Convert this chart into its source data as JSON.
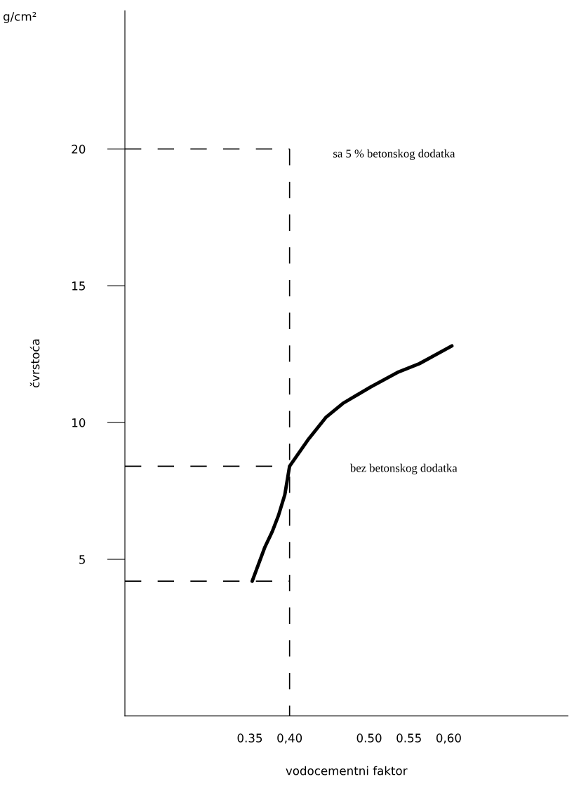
{
  "chart_data": {
    "type": "line",
    "xlabel": "vodocementni faktor",
    "ylabel": "čvrstoća",
    "xlim": [
      0.193,
      0.75
    ],
    "ylim": [
      -0.72,
      25.05
    ],
    "xticks": [
      0.35,
      {
        "value": 0.4,
        "label": "0,40"
      },
      {
        "value": 0.5,
        "label": "0.50"
      },
      0.55,
      {
        "value": 0.6,
        "label": "0,60"
      }
    ],
    "yticks": [
      5,
      10,
      15,
      20
    ],
    "grid": false,
    "marker": "none",
    "series": [
      {
        "color": "#000000",
        "line_style": "solid",
        "x": [
          0.353,
          0.369,
          0.378,
          0.386,
          0.394,
          0.4,
          0.424,
          0.446,
          0.467,
          0.502,
          0.537,
          0.563,
          0.604
        ],
        "values": [
          4.2,
          5.45,
          6.0,
          6.6,
          7.36,
          8.4,
          9.4,
          10.2,
          10.7,
          11.3,
          11.85,
          12.15,
          12.8
        ]
      },
      {
        "color": "#000000",
        "line_style": "dashed",
        "x": [
          0.193,
          0.4
        ],
        "values": [
          20,
          20
        ]
      },
      {
        "color": "#000000",
        "line_style": "dashed",
        "x": [
          0.193,
          0.4
        ],
        "values": [
          8.4,
          8.4
        ]
      },
      {
        "color": "#000000",
        "line_style": "dashed",
        "x": [
          0.193,
          0.4
        ],
        "values": [
          4.2,
          4.2
        ]
      },
      {
        "color": "#000000",
        "line_style": "dashed",
        "x": [
          0.4,
          0.4
        ],
        "values": [
          20,
          -0.72
        ]
      }
    ],
    "annotations": [
      "g/cm²",
      "sa 5 % betonskog dodatka",
      "bez betonskog dodatka"
    ]
  }
}
